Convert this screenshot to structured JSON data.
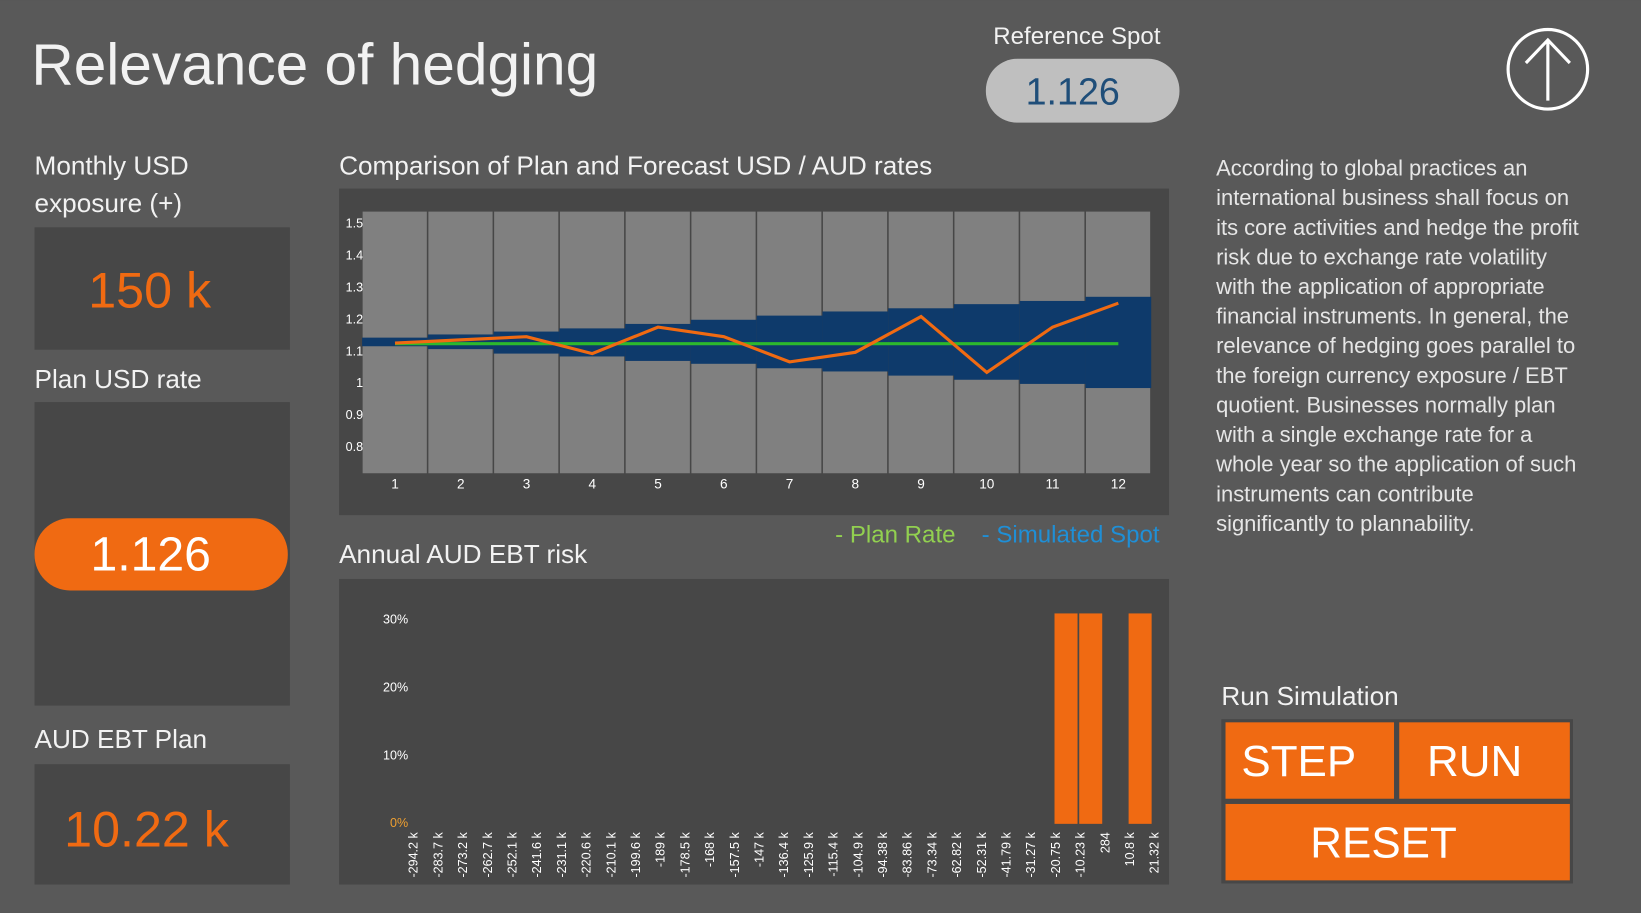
{
  "header": {
    "title": "Relevance of hedging",
    "reference_label": "Reference  Spot",
    "reference_value": "1.126"
  },
  "panels": [
    {
      "label_lines": [
        "Monthly USD",
        "exposure (+)"
      ],
      "value": "150 k"
    },
    {
      "label_lines": [
        "Plan USD rate"
      ],
      "value": "1.126"
    },
    {
      "label_lines": [
        "AUD EBT Plan"
      ],
      "value": "10.22 k"
    }
  ],
  "rate_chart": {
    "title": "Comparison of Plan and Forecast USD / AUD rates",
    "categories": [
      "1",
      "2",
      "3",
      "4",
      "5",
      "6",
      "7",
      "8",
      "9",
      "10",
      "11",
      "12"
    ],
    "ylim": [
      0.72,
      1.54
    ],
    "yticks": [
      1.5,
      1.4,
      1.3,
      1.2,
      1.1,
      1,
      0.9,
      0.8
    ],
    "band": {
      "color": "#0e3a6b",
      "high": [
        1.145,
        1.155,
        1.164,
        1.174,
        1.188,
        1.201,
        1.214,
        1.227,
        1.237,
        1.25,
        1.26,
        1.273
      ],
      "low": [
        1.118,
        1.109,
        1.095,
        1.086,
        1.072,
        1.063,
        1.049,
        1.039,
        1.026,
        1.013,
        1.0,
        0.987
      ]
    },
    "series": [
      {
        "name": "- Plan Rate",
        "color": "#2db82d",
        "legend_color": "#92d050",
        "values": [
          1.126,
          1.126,
          1.126,
          1.126,
          1.126,
          1.126,
          1.126,
          1.126,
          1.126,
          1.126,
          1.126,
          1.126
        ]
      },
      {
        "name": "- Simulated Spot",
        "color": "#f06a12",
        "legend_color": "#1f8fd6",
        "values": [
          1.128,
          1.138,
          1.148,
          1.095,
          1.178,
          1.148,
          1.069,
          1.099,
          1.211,
          1.036,
          1.178,
          1.253
        ]
      }
    ]
  },
  "risk_chart": {
    "title": "Annual AUD EBT risk",
    "color": "#f06a12",
    "ylim": [
      0,
      35
    ],
    "yticks": [
      {
        "value": 0,
        "label": "0%"
      },
      {
        "value": 10,
        "label": "10%"
      },
      {
        "value": 20,
        "label": "20%"
      },
      {
        "value": 30,
        "label": "30%"
      }
    ],
    "categories": [
      "-294.2 k",
      "-283.7 k",
      "-273.2 k",
      "-262.7 k",
      "-252.1 k",
      "-241.6 k",
      "-231.1 k",
      "-220.6 k",
      "-210.1 k",
      "-199.6 k",
      "-189 k",
      "-178.5 k",
      "-168 k",
      "-157.5 k",
      "-147 k",
      "-136.4 k",
      "-125.9 k",
      "-115.4 k",
      "-104.9 k",
      "-94.38 k",
      "-83.86 k",
      "-73.34 k",
      "-62.82 k",
      "-52.31 k",
      "-41.79 k",
      "-31.27 k",
      "-20.75 k",
      "-10.23 k",
      "284",
      "10.8 k",
      "21.32 k"
    ],
    "values": [
      0,
      0,
      0,
      0,
      0,
      0,
      0,
      0,
      0,
      0,
      0,
      0,
      0,
      0,
      0,
      0,
      0,
      0,
      0,
      0,
      0,
      0,
      0,
      0,
      0,
      0,
      31,
      31,
      0,
      31,
      0
    ]
  },
  "description_lines": [
    "According to global practices an",
    "international business shall focus on",
    "its core activities and hedge the profit",
    "risk due to exchange rate volatility",
    "with the application of appropriate",
    "financial instruments. In general, the",
    "relevance of hedging goes parallel to",
    "the foreign currency exposure / EBT",
    "quotient. Businesses normally plan",
    "with a single exchange rate for a",
    "whole year so the application of such",
    "instruments can contribute",
    "significantly to plannability."
  ],
  "simulation": {
    "title": "Run Simulation",
    "buttons": [
      "STEP",
      "RUN",
      "RESET"
    ]
  }
}
